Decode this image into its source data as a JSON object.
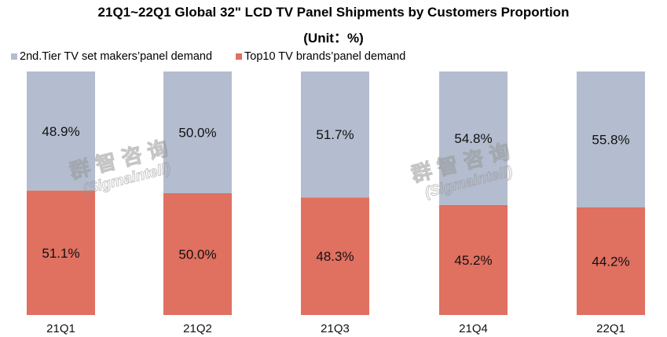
{
  "chart_data": {
    "type": "bar",
    "stacked": true,
    "title": "21Q1~22Q1 Global 32\" LCD TV Panel Shipments by Customers Proportion",
    "subtitle": "(Unit：%)",
    "xlabel": "",
    "ylabel": "",
    "ylim": [
      0,
      100
    ],
    "grid": false,
    "legend_position": "top-left",
    "categories": [
      "21Q1",
      "21Q2",
      "21Q3",
      "21Q4",
      "22Q1"
    ],
    "series": [
      {
        "name": "Top10 TV brands’panel demand",
        "color": "#e07060",
        "values": [
          51.1,
          50.0,
          48.3,
          45.2,
          44.2
        ],
        "labels": [
          "51.1%",
          "50.0%",
          "48.3%",
          "45.2%",
          "44.2%"
        ]
      },
      {
        "name": "2nd.Tier TV set makers’panel demand",
        "color": "#b4bdcf",
        "values": [
          48.9,
          50.0,
          51.7,
          54.8,
          55.8
        ],
        "labels": [
          "48.9%",
          "50.0%",
          "51.7%",
          "54.8%",
          "55.8%"
        ]
      }
    ]
  },
  "legend": [
    {
      "label": "2nd.Tier TV set makers’panel demand",
      "color": "#b4bdcf"
    },
    {
      "label": "Top10 TV brands’panel demand",
      "color": "#e07060"
    }
  ],
  "watermark": {
    "cn": "群智咨询",
    "en": "(Sigmaintell)"
  }
}
